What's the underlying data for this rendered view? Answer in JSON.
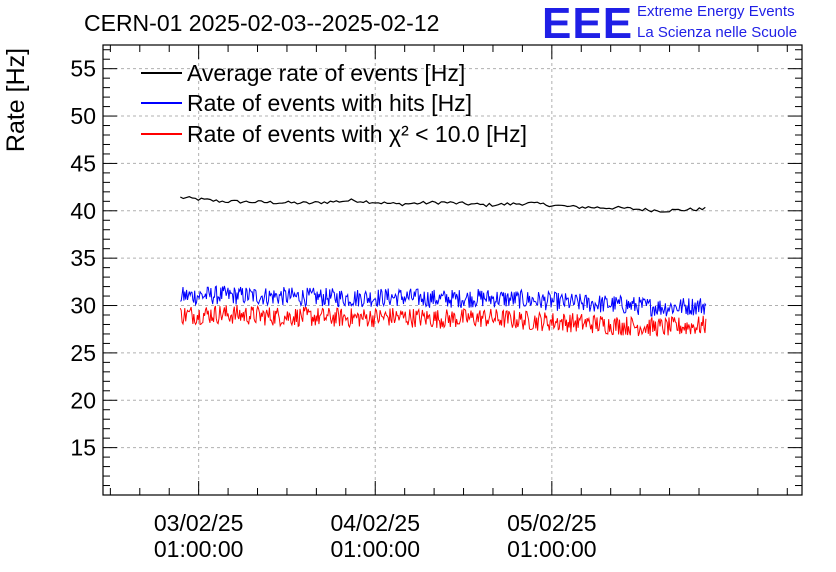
{
  "chart_data": {
    "type": "line",
    "title": "CERN-01 2025-02-03--2025-02-12",
    "ylabel": "Rate [Hz]",
    "xlabel": "",
    "ylim": [
      10,
      57.5
    ],
    "yticks": [
      15,
      20,
      25,
      30,
      35,
      40,
      45,
      50,
      55
    ],
    "xlim": [
      "2025-02-02T12:00:00",
      "2025-02-06T11:00:00"
    ],
    "xticks": [
      {
        "date": "2025-02-03T01:00:00",
        "line1": "03/02/25",
        "line2": "01:00:00"
      },
      {
        "date": "2025-02-04T01:00:00",
        "line1": "04/02/25",
        "line2": "01:00:00"
      },
      {
        "date": "2025-02-05T01:00:00",
        "line1": "05/02/25",
        "line2": "01:00:00"
      }
    ],
    "grid": true,
    "legend_position": "top-left",
    "series": [
      {
        "name": "Average rate of events [Hz]",
        "color": "#000000",
        "x": [
          "2025-02-02T22:30:00",
          "2025-02-03T04:00:00",
          "2025-02-03T10:00:00",
          "2025-02-03T16:00:00",
          "2025-02-03T22:00:00",
          "2025-02-04T04:00:00",
          "2025-02-04T10:00:00",
          "2025-02-04T16:00:00",
          "2025-02-04T22:00:00",
          "2025-02-05T04:00:00",
          "2025-02-05T10:00:00",
          "2025-02-05T16:00:00",
          "2025-02-05T22:00:00"
        ],
        "y": [
          41.4,
          41.0,
          40.9,
          40.8,
          41.1,
          40.7,
          40.9,
          40.6,
          40.8,
          40.4,
          40.3,
          40.0,
          40.2
        ]
      },
      {
        "name": "Rate of events with hits [Hz]",
        "color": "#0000ff",
        "x": [
          "2025-02-02T22:30:00",
          "2025-02-03T04:00:00",
          "2025-02-03T10:00:00",
          "2025-02-03T16:00:00",
          "2025-02-03T22:00:00",
          "2025-02-04T04:00:00",
          "2025-02-04T10:00:00",
          "2025-02-04T16:00:00",
          "2025-02-04T22:00:00",
          "2025-02-05T04:00:00",
          "2025-02-05T10:00:00",
          "2025-02-05T16:00:00",
          "2025-02-05T22:00:00"
        ],
        "y": [
          31.0,
          31.1,
          31.0,
          30.9,
          30.8,
          30.9,
          30.7,
          30.8,
          30.6,
          30.3,
          30.1,
          29.8,
          30.0
        ]
      },
      {
        "name": "Rate of events with χ² < 10.0 [Hz]",
        "color": "#ff0000",
        "x": [
          "2025-02-02T22:30:00",
          "2025-02-03T04:00:00",
          "2025-02-03T10:00:00",
          "2025-02-03T16:00:00",
          "2025-02-03T22:00:00",
          "2025-02-04T04:00:00",
          "2025-02-04T10:00:00",
          "2025-02-04T16:00:00",
          "2025-02-04T22:00:00",
          "2025-02-05T04:00:00",
          "2025-02-05T10:00:00",
          "2025-02-05T16:00:00",
          "2025-02-05T22:00:00"
        ],
        "y": [
          29.0,
          29.1,
          28.9,
          28.8,
          28.7,
          28.8,
          28.6,
          28.7,
          28.4,
          28.2,
          27.9,
          27.7,
          27.9
        ]
      }
    ]
  },
  "logo": {
    "mark": "EEE",
    "line1": "Extreme Energy Events",
    "line2": "La Scienza nelle Scuole",
    "color": "#1f1fe6"
  }
}
